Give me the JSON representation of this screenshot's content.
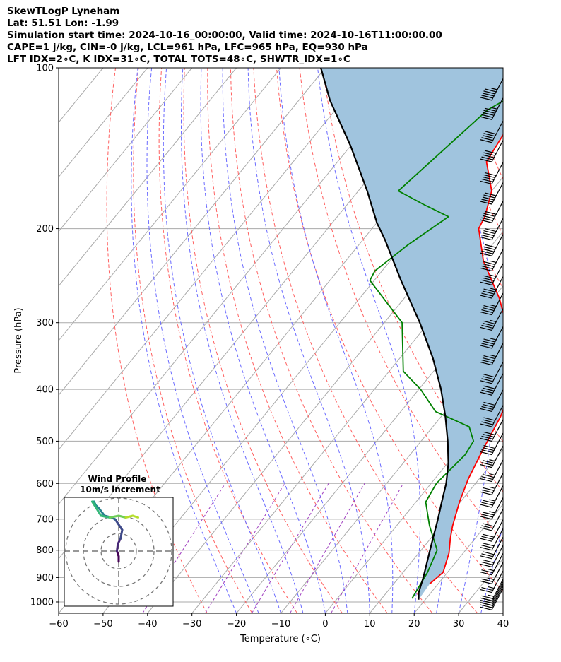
{
  "header": {
    "line1": "SkewTLogP Lyneham",
    "line2": "Lat: 51.51   Lon: -1.99",
    "line3": "Simulation start time: 2024-10-16_00:00:00, Valid time: 2024-10-16T11:00:00.00",
    "line4": "CAPE=1 j/kg, CIN=-0 j/kg, LCL=961 hPa, LFC=965 hPa, EQ=930 hPa",
    "line5": "LFT IDX=2∘C, K IDX=31∘C, TOTAL TOTS=48∘C, SHWTR_IDX=1∘C"
  },
  "chart_data": {
    "type": "line",
    "subtype": "skew-t log-p",
    "xlabel": "Temperature (∘C)",
    "ylabel": "Pressure (hPa)",
    "xlim": [
      -60,
      40
    ],
    "ylim": [
      1050,
      100
    ],
    "x_ticks": [
      "−60",
      "−50",
      "−40",
      "−30",
      "−20",
      "−10",
      "0",
      "10",
      "20",
      "30",
      "40"
    ],
    "y_ticks": [
      "100",
      "200",
      "300",
      "400",
      "500",
      "600",
      "700",
      "800",
      "900",
      "1000"
    ],
    "series": [
      {
        "color": "#ff0000",
        "points": [
          [
            18.1,
            925
          ],
          [
            19.0,
            880
          ],
          [
            16.8,
            810
          ],
          [
            14.4,
            760
          ],
          [
            12.6,
            720
          ],
          [
            9.8,
            650
          ],
          [
            7.6,
            590
          ],
          [
            5.5,
            520
          ],
          [
            3.4,
            450
          ],
          [
            0.7,
            400
          ],
          [
            -4.2,
            360
          ],
          [
            -9.0,
            320
          ],
          [
            -18.6,
            270
          ],
          [
            -29.0,
            230
          ],
          [
            -36.0,
            200
          ],
          [
            -36.8,
            190
          ],
          [
            -40.0,
            170
          ],
          [
            -46.5,
            150
          ],
          [
            -48.4,
            125
          ],
          [
            -55.0,
            100
          ]
        ]
      },
      {
        "color": "#008000",
        "points": [
          [
            16.8,
            985
          ],
          [
            15.5,
            880
          ],
          [
            13.6,
            800
          ],
          [
            7.4,
            720
          ],
          [
            2.2,
            650
          ],
          [
            1.2,
            600
          ],
          [
            2.4,
            530
          ],
          [
            1.8,
            500
          ],
          [
            -1.8,
            470
          ],
          [
            -12.2,
            440
          ],
          [
            -19.6,
            400
          ],
          [
            -26.8,
            370
          ],
          [
            -36.0,
            300
          ],
          [
            -51.0,
            250
          ],
          [
            -51.6,
            240
          ],
          [
            -49.0,
            215
          ],
          [
            -45.0,
            190
          ],
          [
            -53.0,
            180
          ],
          [
            -61.0,
            170
          ],
          [
            -55.8,
            120
          ],
          [
            -47.0,
            100
          ]
        ]
      },
      {
        "color": "#000000",
        "points": [
          [
            18.5,
            990
          ],
          [
            17.2,
            960
          ],
          [
            15.5,
            900
          ],
          [
            13.8,
            850
          ],
          [
            12.0,
            800
          ],
          [
            10.1,
            750
          ],
          [
            8.1,
            700
          ],
          [
            5.8,
            650
          ],
          [
            3.4,
            600
          ],
          [
            0.2,
            550
          ],
          [
            -4.0,
            500
          ],
          [
            -9.0,
            450
          ],
          [
            -15.0,
            400
          ],
          [
            -22.5,
            350
          ],
          [
            -32.0,
            300
          ],
          [
            -44.0,
            250
          ],
          [
            -55.0,
            210
          ],
          [
            -60.0,
            195
          ],
          [
            -68.0,
            170
          ],
          [
            -80.0,
            140
          ],
          [
            -93.0,
            115
          ],
          [
            -101.0,
            100
          ]
        ]
      }
    ],
    "wind_barbs": {
      "color": "#000000",
      "levels_hpa": [
        1035,
        1025,
        1015,
        1005,
        995,
        960,
        925,
        890,
        860,
        830,
        800,
        770,
        735,
        700,
        665,
        630,
        595,
        560,
        530,
        500,
        470,
        440,
        410,
        390,
        360,
        335,
        310,
        290,
        270,
        255,
        240,
        225,
        210,
        195,
        180,
        165,
        150,
        138,
        125,
        115
      ],
      "speeds_kt": [
        15,
        20,
        20,
        25,
        25,
        25,
        25,
        25,
        30,
        30,
        30,
        30,
        30,
        35,
        35,
        35,
        35,
        35,
        40,
        40,
        40,
        40,
        40,
        40,
        45,
        45,
        45,
        45,
        45,
        45,
        45,
        50,
        50,
        50,
        50,
        50,
        50,
        50,
        55,
        55
      ]
    },
    "inset": {
      "type": "hodograph",
      "title": "Wind Profile",
      "subtitle": "10m/s increment",
      "rings_mps": [
        10,
        20,
        30
      ]
    }
  }
}
